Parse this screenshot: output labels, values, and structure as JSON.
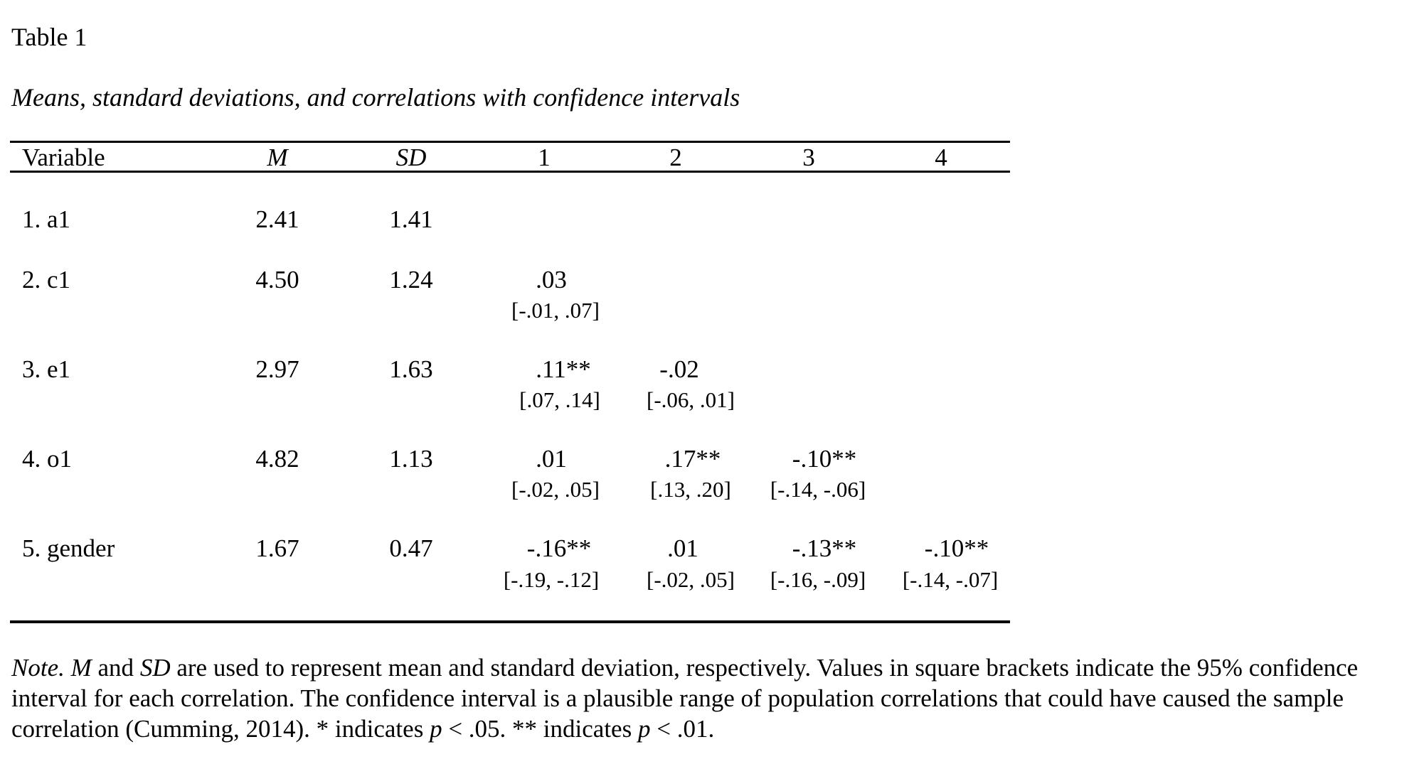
{
  "table": {
    "number": "Table 1",
    "title": "Means, standard deviations, and correlations with confidence intervals",
    "headers": {
      "variable": "Variable",
      "m": "M",
      "sd": "SD",
      "c1": "1",
      "c2": "2",
      "c3": "3",
      "c4": "4"
    },
    "rows": [
      {
        "variable": "1. a1",
        "m": "2.41",
        "sd": "1.41",
        "corr": []
      },
      {
        "variable": "2. c1",
        "m": "4.50",
        "sd": "1.24",
        "corr": [
          {
            "value": ".03",
            "ci": "[-.01, .07]"
          }
        ]
      },
      {
        "variable": "3. e1",
        "m": "2.97",
        "sd": "1.63",
        "corr": [
          {
            "value": ".11**",
            "ci": "[.07, .14]"
          },
          {
            "value": "-.02",
            "ci": "[-.06, .01]"
          }
        ]
      },
      {
        "variable": "4. o1",
        "m": "4.82",
        "sd": "1.13",
        "corr": [
          {
            "value": ".01",
            "ci": "[-.02, .05]"
          },
          {
            "value": ".17**",
            "ci": "[.13, .20]"
          },
          {
            "value": "-.10**",
            "ci": "[-.14, -.06]"
          }
        ]
      },
      {
        "variable": "5. gender",
        "m": "1.67",
        "sd": "0.47",
        "corr": [
          {
            "value": "-.16**",
            "ci": "[-.19, -.12]"
          },
          {
            "value": ".01",
            "ci": "[-.02, .05]"
          },
          {
            "value": "-.13**",
            "ci": "[-.16, -.09]"
          },
          {
            "value": "-.10**",
            "ci": "[-.14, -.07]"
          }
        ]
      }
    ]
  },
  "note": {
    "label": "Note.",
    "m": "M",
    "and": " and ",
    "sd": "SD",
    "text1": " are used to represent mean and standard deviation, respectively. Values in square brackets indicate the 95% confidence interval for each correlation. The confidence interval is a plausible range of population correlations that could have caused the sample correlation (Cumming, 2014). * indicates ",
    "p1": "p",
    "text2": " < .05. ** indicates ",
    "p2": "p",
    "text3": " < .01."
  }
}
